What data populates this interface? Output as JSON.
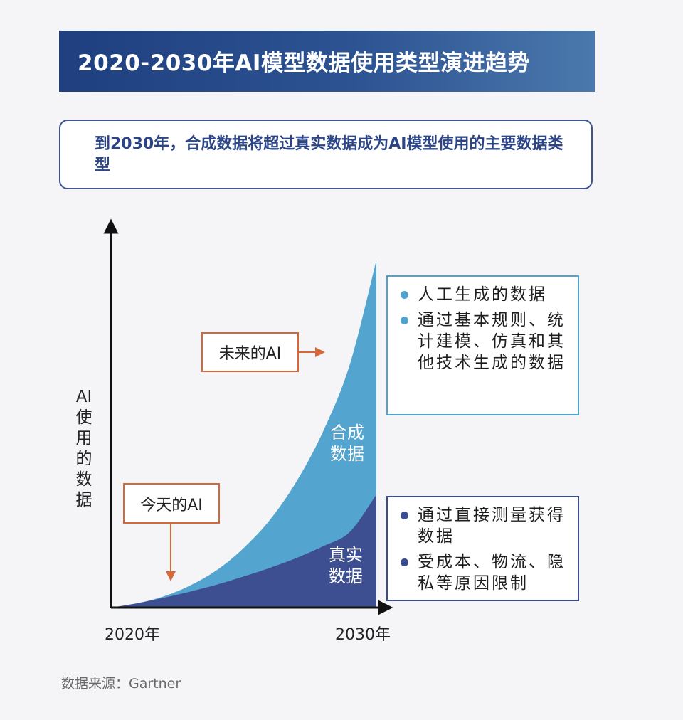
{
  "title": "2020-2030年AI模型数据使用类型演进趋势",
  "subtitle": "到2030年，合成数据将超过真实数据成为AI模型使用的主要数据类型",
  "chart_data": {
    "type": "area",
    "title": "2020-2030年AI模型数据使用类型演进趋势",
    "xlabel": "",
    "ylabel": "AI使用的数据",
    "ylabel_chars": [
      "AI",
      "使",
      "用",
      "的",
      "数",
      "据"
    ],
    "x_ticks": [
      "2020年",
      "2030年"
    ],
    "x": [
      0,
      0.1,
      0.2,
      0.3,
      0.4,
      0.5,
      0.6,
      0.7,
      0.8,
      0.9,
      1.0
    ],
    "xlim": [
      0,
      1
    ],
    "ylim": [
      0,
      1
    ],
    "series": [
      {
        "name": "真实数据",
        "label_lines": [
          "真实",
          "数据"
        ],
        "color": "#3d4f91",
        "values": [
          0,
          0.012,
          0.027,
          0.044,
          0.063,
          0.085,
          0.109,
          0.136,
          0.168,
          0.207,
          0.309
        ]
      },
      {
        "name": "合成数据",
        "label_lines": [
          "合成",
          "数据"
        ],
        "color": "#54a4d0",
        "values": [
          0,
          0.012,
          0.031,
          0.061,
          0.103,
          0.163,
          0.241,
          0.346,
          0.483,
          0.665,
          0.95
        ]
      }
    ],
    "annotations": [
      {
        "text": "今天的AI",
        "arrow": "down"
      },
      {
        "text": "未来的AI",
        "arrow": "right"
      }
    ]
  },
  "legend": {
    "synthetic": {
      "items": [
        "人工生成的数据",
        "通过基本规则、统计建模、仿真和其他技术生成的数据"
      ]
    },
    "real": {
      "items": [
        "通过直接测量获得数据",
        "受成本、物流、隐私等原因限制"
      ]
    }
  },
  "source": "数据来源：Gartner",
  "colors": {
    "title_bg": "#1f3f7f",
    "accent": "#d4683b",
    "synthetic": "#54a4d0",
    "real": "#3d4f91"
  }
}
